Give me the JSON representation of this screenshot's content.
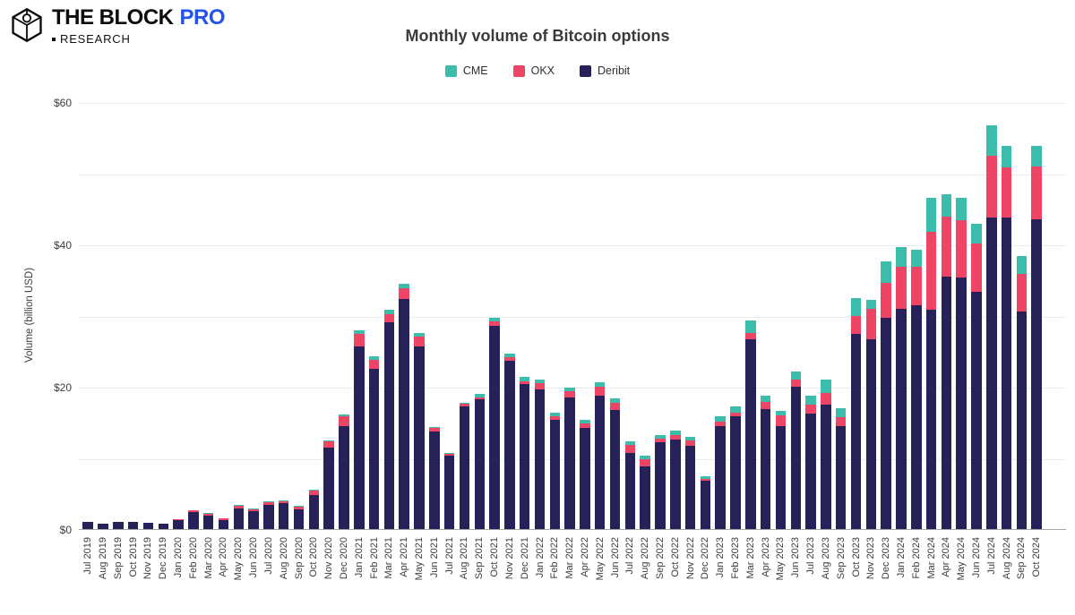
{
  "header": {
    "brand": "THE BLOCK",
    "pro": "PRO",
    "research": "RESEARCH",
    "pro_color": "#2553e9"
  },
  "chart_data": {
    "type": "bar",
    "stacked": true,
    "title": "Monthly volume of Bitcoin options",
    "ylabel": "Volume (billion USD)",
    "ylim": [
      0,
      60
    ],
    "yticks": [
      0,
      20,
      40,
      60
    ],
    "ytick_labels": [
      "$0",
      "$20",
      "$40",
      "$60"
    ],
    "gridline_step": 10,
    "grid": true,
    "legend_position": "top-center",
    "stack_order_bottom_to_top": [
      "Deribit",
      "OKX",
      "CME"
    ],
    "categories": [
      "Jul 2019",
      "Aug 2019",
      "Sep 2019",
      "Oct 2019",
      "Nov 2019",
      "Dec 2019",
      "Jan 2020",
      "Feb 2020",
      "Mar 2020",
      "Apr 2020",
      "May 2020",
      "Jun 2020",
      "Jul 2020",
      "Aug 2020",
      "Sep 2020",
      "Oct 2020",
      "Nov 2020",
      "Dec 2020",
      "Jan 2021",
      "Feb 2021",
      "Mar 2021",
      "Apr 2021",
      "May 2021",
      "Jun 2021",
      "Jul 2021",
      "Aug 2021",
      "Sep 2021",
      "Oct 2021",
      "Nov 2021",
      "Dec 2021",
      "Jan 2022",
      "Feb 2022",
      "Mar 2022",
      "Apr 2022",
      "May 2022",
      "Jun 2022",
      "Jul 2022",
      "Aug 2022",
      "Sep 2022",
      "Oct 2022",
      "Nov 2022",
      "Dec 2022",
      "Jan 2023",
      "Feb 2023",
      "Mar 2023",
      "Apr 2023",
      "May 2023",
      "Jun 2023",
      "Jul 2023",
      "Aug 2023",
      "Sep 2023",
      "Oct 2023",
      "Nov 2023",
      "Dec 2023",
      "Jan 2024",
      "Feb 2024",
      "Mar 2024",
      "Apr 2024",
      "May 2024",
      "Jun 2024",
      "Jul 2024",
      "Aug 2024",
      "Sep 2024",
      "Oct 2024"
    ],
    "series": [
      {
        "name": "CME",
        "color": "#3cbcab",
        "values": [
          0,
          0,
          0,
          0,
          0,
          0,
          0.05,
          0.05,
          0.05,
          0.05,
          0.1,
          0.1,
          0.1,
          0.1,
          0.1,
          0.1,
          0.15,
          0.2,
          0.5,
          0.5,
          0.55,
          0.65,
          0.4,
          0.2,
          0.1,
          0.2,
          0.5,
          0.5,
          0.5,
          0.6,
          0.55,
          0.55,
          0.55,
          0.5,
          0.6,
          0.6,
          0.55,
          0.5,
          0.55,
          0.6,
          0.5,
          0.4,
          0.7,
          0.8,
          1.7,
          0.9,
          0.6,
          1.25,
          1.25,
          1.9,
          1.25,
          2.4,
          1.25,
          3.0,
          2.7,
          2.4,
          4.7,
          3.2,
          3.1,
          2.8,
          4.3,
          3.0,
          2.5,
          2.85
        ]
      },
      {
        "name": "OKX",
        "color": "#ee4465",
        "values": [
          0,
          0,
          0,
          0,
          0,
          0,
          0.05,
          0.2,
          0.3,
          0.15,
          0.4,
          0.3,
          0.35,
          0.35,
          0.4,
          0.6,
          0.9,
          1.4,
          1.75,
          1.25,
          1.25,
          1.55,
          1.4,
          0.5,
          0.3,
          0.4,
          0.25,
          0.55,
          0.5,
          0.35,
          0.85,
          0.5,
          0.85,
          0.65,
          1.2,
          1.1,
          1.1,
          1.0,
          0.5,
          0.6,
          0.75,
          0.3,
          0.6,
          0.55,
          0.9,
          1.05,
          1.45,
          0.95,
          1.25,
          1.6,
          1.25,
          2.6,
          4.3,
          4.9,
          6.0,
          5.3,
          11.0,
          8.4,
          8.0,
          6.8,
          8.6,
          7.0,
          5.3,
          7.5
        ]
      },
      {
        "name": "Deribit",
        "color": "#27215a",
        "values": [
          1.0,
          0.7,
          1.0,
          1.0,
          0.9,
          0.75,
          1.3,
          2.4,
          1.9,
          1.3,
          2.9,
          2.5,
          3.4,
          3.6,
          2.8,
          4.8,
          11.4,
          14.5,
          25.7,
          22.5,
          29.0,
          32.3,
          25.7,
          13.7,
          10.3,
          17.2,
          18.3,
          28.6,
          23.6,
          20.4,
          19.6,
          15.3,
          18.5,
          14.2,
          18.8,
          16.7,
          10.7,
          8.8,
          12.2,
          12.6,
          11.65,
          6.75,
          14.5,
          15.85,
          26.7,
          16.8,
          14.5,
          20.0,
          16.2,
          17.5,
          14.5,
          27.4,
          26.7,
          29.7,
          30.9,
          31.5,
          30.8,
          35.5,
          35.4,
          33.3,
          43.8,
          43.8,
          30.6,
          43.5
        ]
      }
    ]
  }
}
